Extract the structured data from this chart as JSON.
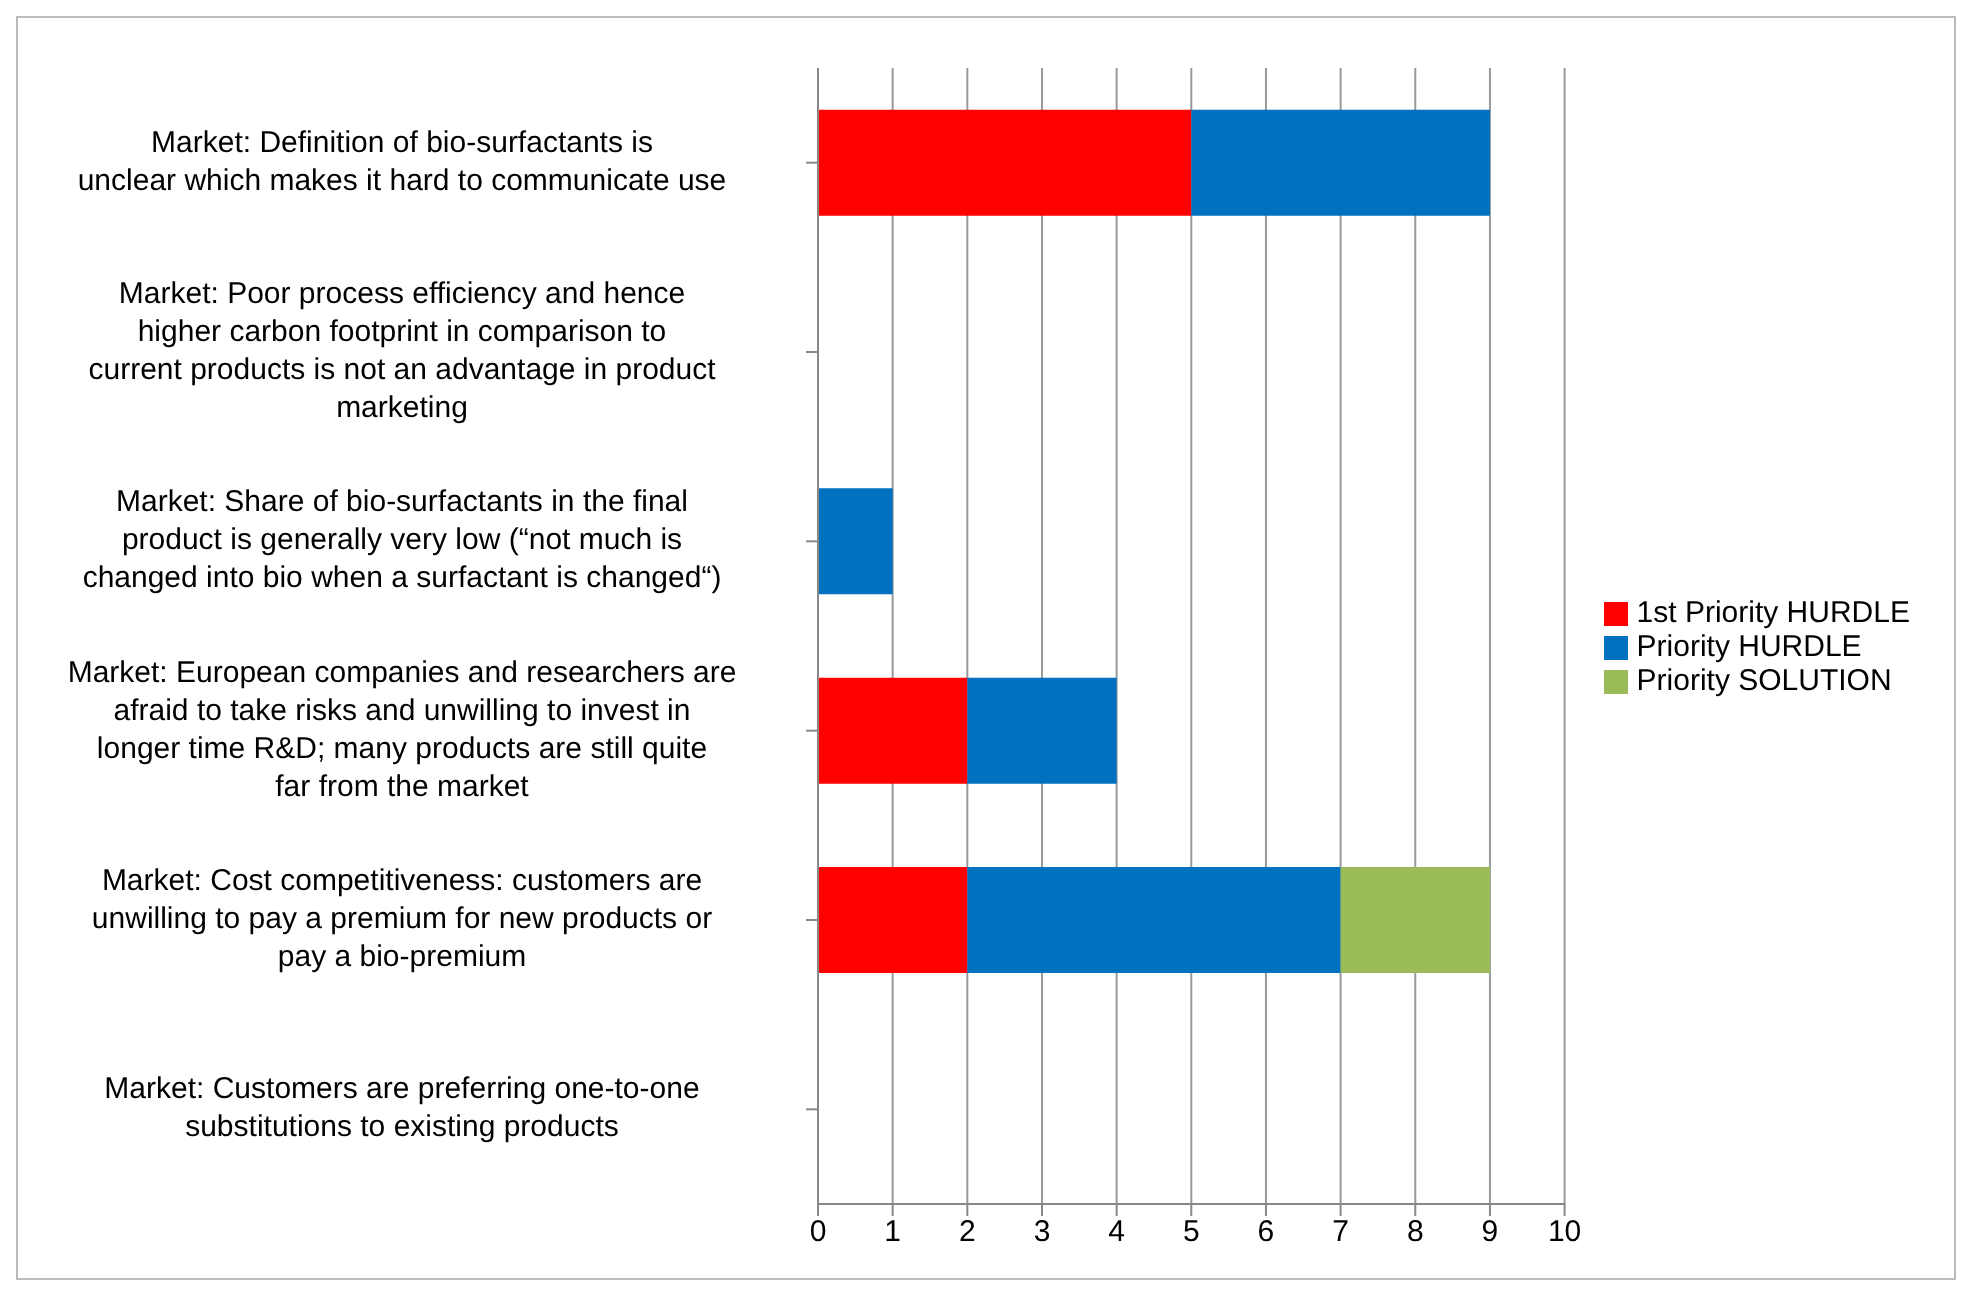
{
  "chart_data": {
    "type": "bar",
    "orientation": "horizontal",
    "stacked": true,
    "categories": [
      "Market: Definition of bio-surfactants is unclear which makes it hard to communicate use",
      "Market: Poor process efficiency and hence higher carbon footprint in comparison to current products is not an advantage in product marketing",
      "Market: Share of bio-surfactants  in the final product is generally very low (“not much is changed into bio when a surfactant is changed“)",
      "Market: European companies and researchers are afraid to take risks and unwilling to invest in longer time R&D; many products are still quite far from the market",
      "Market: Cost competitiveness: customers are unwilling to pay a premium for new products or pay a bio-premium",
      "Market: Customers are preferring one-to-one substitutions to existing products"
    ],
    "series": [
      {
        "name": "1st Priority HURDLE",
        "color": "#ff0000",
        "values": [
          5,
          0,
          0,
          2,
          2,
          0
        ]
      },
      {
        "name": "Priority HURDLE",
        "color": "#0070c0",
        "values": [
          4,
          0,
          1,
          2,
          5,
          0
        ]
      },
      {
        "name": "Priority SOLUTION",
        "color": "#9bbb59",
        "values": [
          0,
          0,
          0,
          0,
          2,
          0
        ]
      }
    ],
    "xlim": [
      0,
      10
    ],
    "xticks": [
      0,
      1,
      2,
      3,
      4,
      5,
      6,
      7,
      8,
      9,
      10
    ],
    "grid": "x",
    "legend": "right"
  }
}
